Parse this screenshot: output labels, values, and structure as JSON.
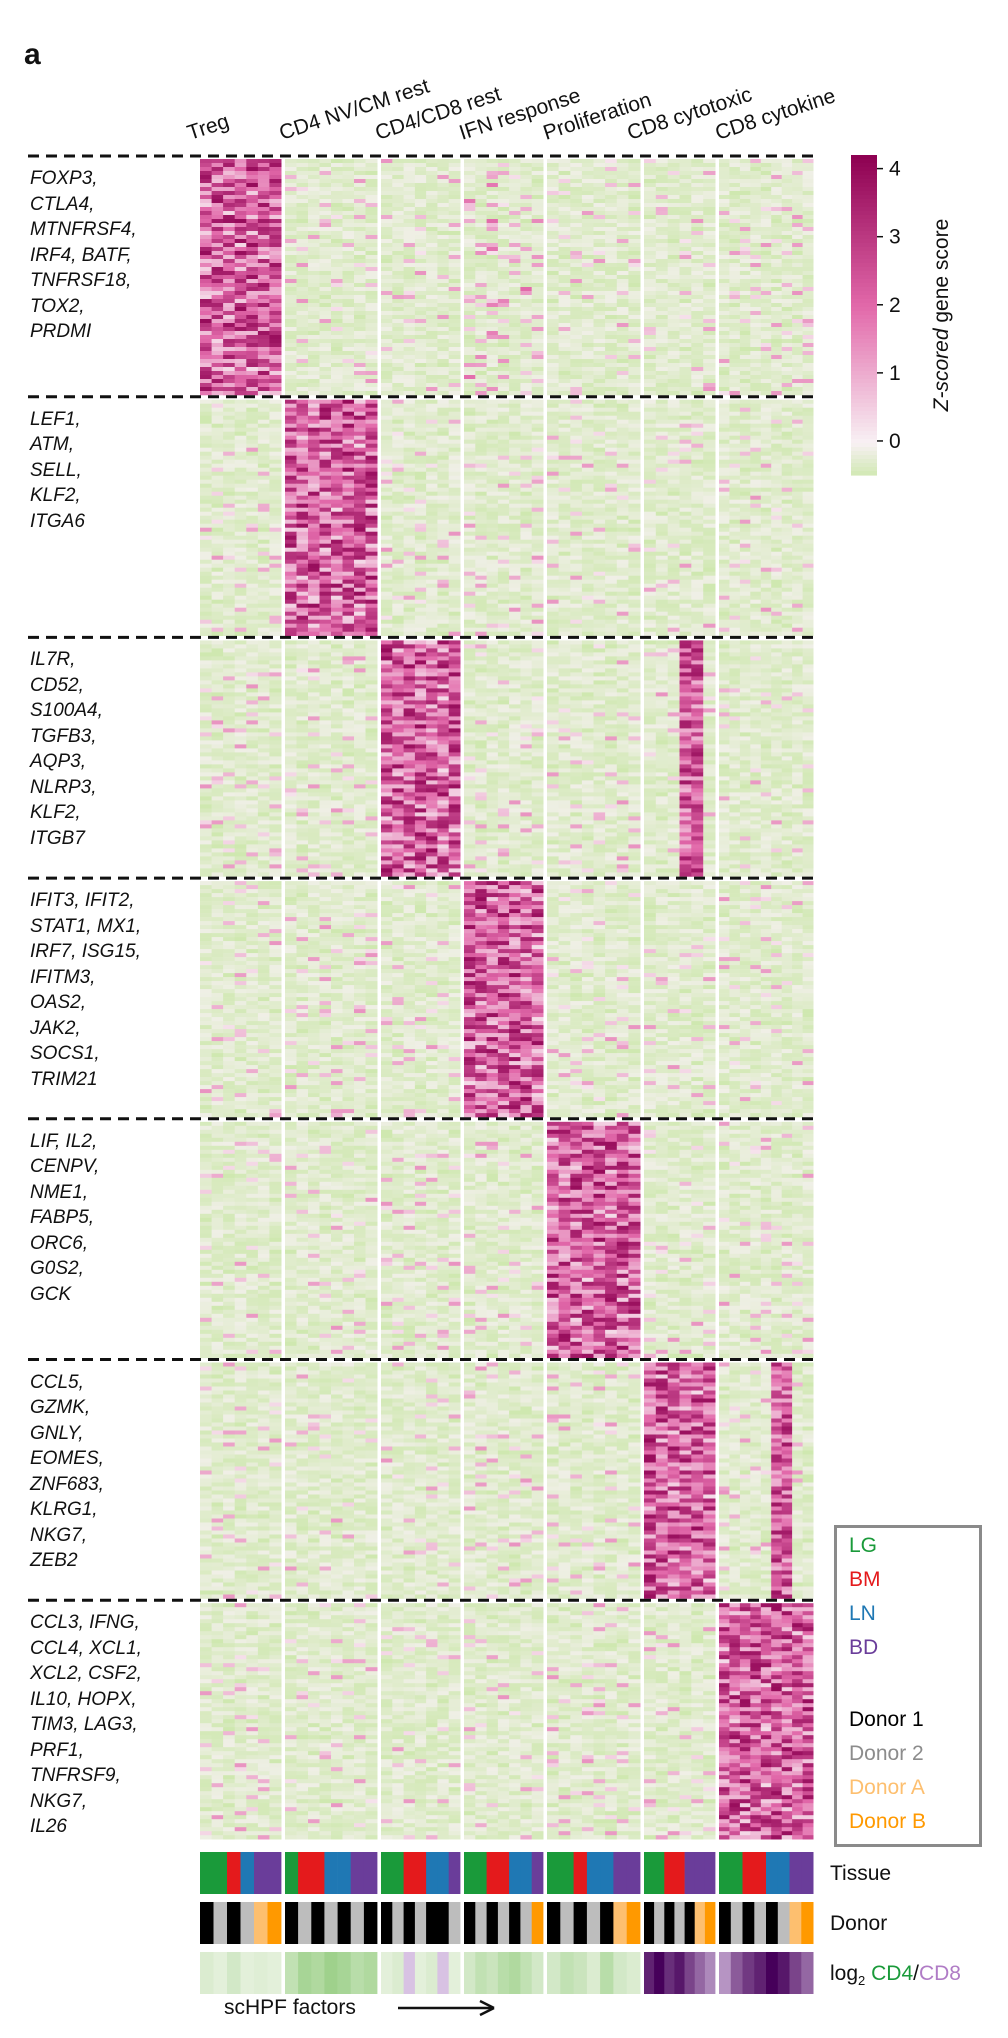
{
  "panel_letter": "a",
  "colors": {
    "low": "#cfe8b0",
    "mid": "#f8f1f4",
    "high": "#8e0152",
    "tissue": {
      "LG": "#1a9a3a",
      "BM": "#e41a1c",
      "LN": "#1f78b4",
      "BD": "#6a3d9a"
    },
    "donor": {
      "Donor 1": "#000000",
      "Donor 2": "#bdbdbd",
      "Donor A": "#fdbf6f",
      "Donor B": "#ff9900"
    },
    "cd4": "#1a9a3a",
    "cd8": "#b07cc6"
  },
  "chart_data": {
    "type": "heatmap",
    "columns": [
      "Treg",
      "CD4 NV/CM rest",
      "CD4/CD8 rest",
      "IFN response",
      "Proliferation",
      "CD8 cytotoxic",
      "CD8 cytokine"
    ],
    "gene_groups": [
      {
        "factor": "Treg",
        "genes": [
          "FOXP3,",
          "CTLA4,",
          "MTNFRSF4,",
          "IRF4, BATF,",
          "TNFRSF18,",
          "TOX2,",
          "PRDMI"
        ]
      },
      {
        "factor": "CD4 NV/CM rest",
        "genes": [
          "LEF1,",
          "ATM,",
          "SELL,",
          "KLF2,",
          "ITGA6"
        ]
      },
      {
        "factor": "CD4/CD8 rest",
        "genes": [
          "IL7R,",
          "CD52,",
          "S100A4,",
          "TGFB3,",
          "AQP3,",
          "NLRP3,",
          "KLF2,",
          "ITGB7"
        ]
      },
      {
        "factor": "IFN response",
        "genes": [
          "IFIT3, IFIT2,",
          "STAT1, MX1,",
          "IRF7, ISG15,",
          "IFITM3,",
          "OAS2,",
          "JAK2,",
          "SOCS1,",
          "TRIM21"
        ]
      },
      {
        "factor": "Proliferation",
        "genes": [
          "LIF, IL2,",
          "CENPV,",
          "NME1,",
          "FABP5,",
          "ORC6,",
          "G0S2,",
          "GCK"
        ]
      },
      {
        "factor": "CD8 cytotoxic",
        "genes": [
          "CCL5,",
          "GZMK,",
          "GNLY,",
          "EOMES,",
          "ZNF683,",
          "KLRG1,",
          "NKG7,",
          "ZEB2"
        ]
      },
      {
        "factor": "CD8 cytokine",
        "genes": [
          "CCL3, IFNG,",
          "CCL4, XCL1,",
          "XCL2, CSF2,",
          "IL10, HOPX,",
          "TIM3, LAG3,",
          "PRF1,",
          "TNFRSF9,",
          "NKG7,",
          "IL26"
        ]
      }
    ],
    "colorbar": {
      "label": "Z-scored gene score",
      "ticks": [
        4,
        3,
        2,
        1,
        0
      ],
      "range": [
        -0.5,
        4.2
      ]
    },
    "legend": {
      "tissues": [
        "LG",
        "BM",
        "LN",
        "BD"
      ],
      "donors": [
        "Donor 1",
        "Donor 2",
        "Donor A",
        "Donor B"
      ]
    },
    "tracks": {
      "tissue_label": "Tissue",
      "donor_label": "Donor",
      "ratio_label_prefix": "log",
      "ratio_label_sub": "2",
      "ratio_label_cd4": "CD4",
      "ratio_label_sep": "/",
      "ratio_label_cd8": "CD8",
      "samples": [
        {
          "factor": "Treg",
          "tissue": [
            "LG",
            "LG",
            "BM",
            "LN",
            "BD",
            "BD"
          ],
          "donor": [
            "Donor 1",
            "Donor 2",
            "Donor 1",
            "Donor 2",
            "Donor A",
            "Donor B"
          ],
          "log2_cd4_cd8": [
            0.2,
            0.1,
            0.3,
            0.1,
            0.15,
            0.1
          ]
        },
        {
          "factor": "CD4 NV/CM rest",
          "tissue": [
            "LG",
            "BM",
            "BM",
            "LN",
            "LN",
            "BD",
            "BD"
          ],
          "donor": [
            "Donor 1",
            "Donor 2",
            "Donor 1",
            "Donor 2",
            "Donor 1",
            "Donor 2",
            "Donor 1"
          ],
          "log2_cd4_cd8": [
            0.5,
            0.8,
            0.7,
            0.9,
            0.8,
            0.6,
            0.7
          ]
        },
        {
          "factor": "CD4/CD8 rest",
          "tissue": [
            "LG",
            "LG",
            "BM",
            "BM",
            "LN",
            "LN",
            "BD"
          ],
          "donor": [
            "Donor 1",
            "Donor 2",
            "Donor 1",
            "Donor 2",
            "Donor 1",
            "Donor 1",
            "Donor 2"
          ],
          "log2_cd4_cd8": [
            0.1,
            0.2,
            -0.1,
            0.1,
            0.2,
            -0.1,
            0.1
          ]
        },
        {
          "factor": "IFN response",
          "tissue": [
            "LG",
            "LG",
            "BM",
            "BM",
            "LN",
            "LN",
            "BD"
          ],
          "donor": [
            "Donor 1",
            "Donor 2",
            "Donor 1",
            "Donor 2",
            "Donor 1",
            "Donor 2",
            "Donor B"
          ],
          "log2_cd4_cd8": [
            0.3,
            0.5,
            0.4,
            0.6,
            0.7,
            0.5,
            0.3
          ]
        },
        {
          "factor": "Proliferation",
          "tissue": [
            "LG",
            "LG",
            "BM",
            "LN",
            "LN",
            "BD",
            "BD"
          ],
          "donor": [
            "Donor 1",
            "Donor 2",
            "Donor 1",
            "Donor 2",
            "Donor 1",
            "Donor A",
            "Donor B"
          ],
          "log2_cd4_cd8": [
            0.3,
            0.5,
            0.4,
            0.2,
            0.6,
            0.3,
            0.2
          ]
        },
        {
          "factor": "CD8 cytotoxic",
          "tissue": [
            "LG",
            "LG",
            "BM",
            "BM",
            "BD",
            "BD",
            "BD"
          ],
          "donor": [
            "Donor 1",
            "Donor 2",
            "Donor 1",
            "Donor 2",
            "Donor 1",
            "Donor A",
            "Donor B"
          ],
          "log2_cd4_cd8": [
            -1.5,
            -1.8,
            -1.4,
            -1.6,
            -1.2,
            -0.9,
            -0.6
          ]
        },
        {
          "factor": "CD8 cytokine",
          "tissue": [
            "LG",
            "LG",
            "BM",
            "BM",
            "LN",
            "LN",
            "BD",
            "BD"
          ],
          "donor": [
            "Donor 1",
            "Donor 2",
            "Donor 1",
            "Donor 2",
            "Donor 1",
            "Donor 2",
            "Donor A",
            "Donor B"
          ],
          "log2_cd4_cd8": [
            -0.5,
            -1.0,
            -1.3,
            -1.5,
            -1.8,
            -1.6,
            -1.2,
            -0.9
          ]
        }
      ]
    },
    "x_annotation": "scHPF factors"
  }
}
